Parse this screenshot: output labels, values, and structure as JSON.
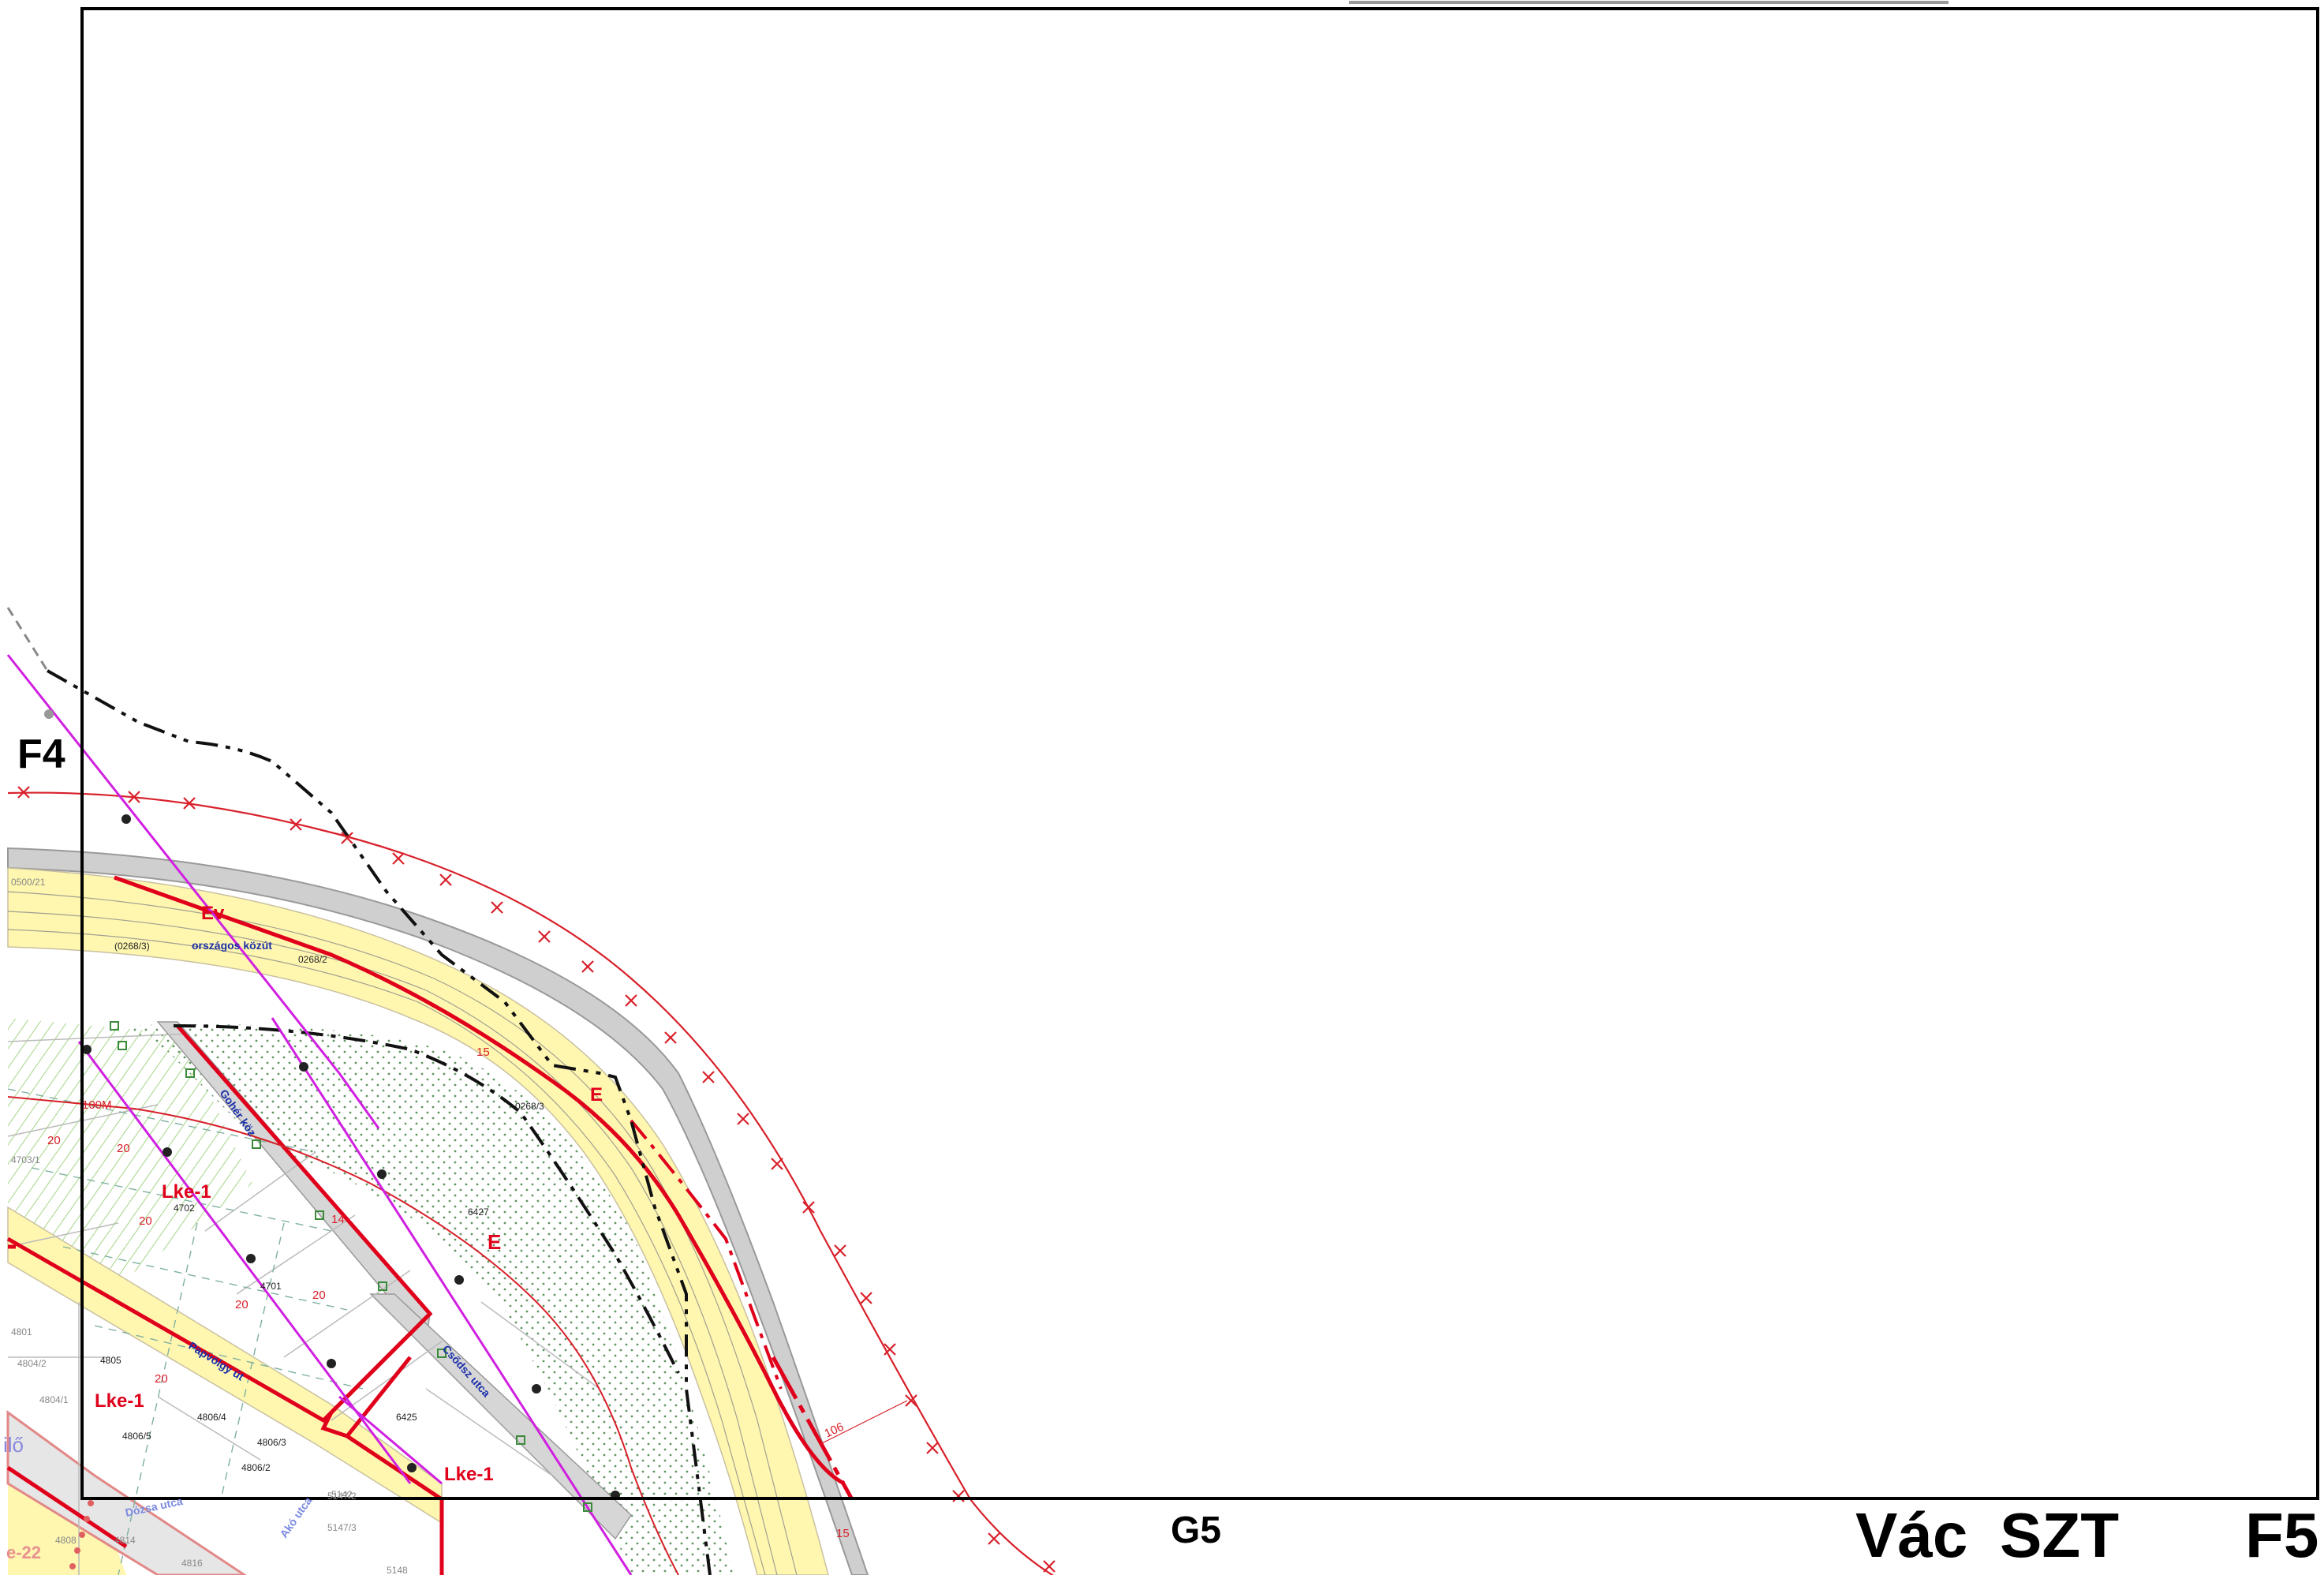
{
  "sheet": {
    "grid_labels": {
      "left": "F4",
      "bottom_center": "G5",
      "bottom_right": "F5"
    },
    "city": "Vác",
    "doc_code": "SZT"
  },
  "zones": {
    "ev": "Ev",
    "e_top": "E",
    "e_mid": "E",
    "lke_a": "Lke-1",
    "lke_b": "Lke-1",
    "lke_c": "Lke-1",
    "lke_d": "e-22"
  },
  "roads": {
    "national": "országos közút",
    "gohler": "Gohér köz",
    "papvolgy": "Papvölgy út",
    "csonak": "Csődsz utca",
    "deak": "Dózsa utca",
    "ako": "Akó utca"
  },
  "parcels": [
    "(0268/3)",
    "0268/2",
    "0268/3",
    "6427",
    "4702",
    "4701",
    "4805",
    "4806/4",
    "4806/3",
    "4806/5",
    "4806/2",
    "6425",
    "4703/1",
    "4804/2",
    "4804/1",
    "4801",
    "0500/21",
    "4808",
    "4814",
    "4816",
    "5147/3",
    "5147/2",
    "5148",
    "5142"
  ],
  "measures": {
    "m1": "100M",
    "m2": "20",
    "m3": "20",
    "m4": "20",
    "m5": "20",
    "m6": "20",
    "m7": "20",
    "m8": "15",
    "m9": "14",
    "m10": "106",
    "m11": "15"
  },
  "misc": {
    "ilo": "ilő"
  },
  "colors": {
    "zone_line": "#e0001b",
    "road_fill": "#fff7b0",
    "road_grey": "#cfcfcf",
    "utility_magenta": "#d020e0",
    "protection_red": "#d8202a",
    "frame": "#000000",
    "road_label_blue": "#1a2fa8"
  }
}
